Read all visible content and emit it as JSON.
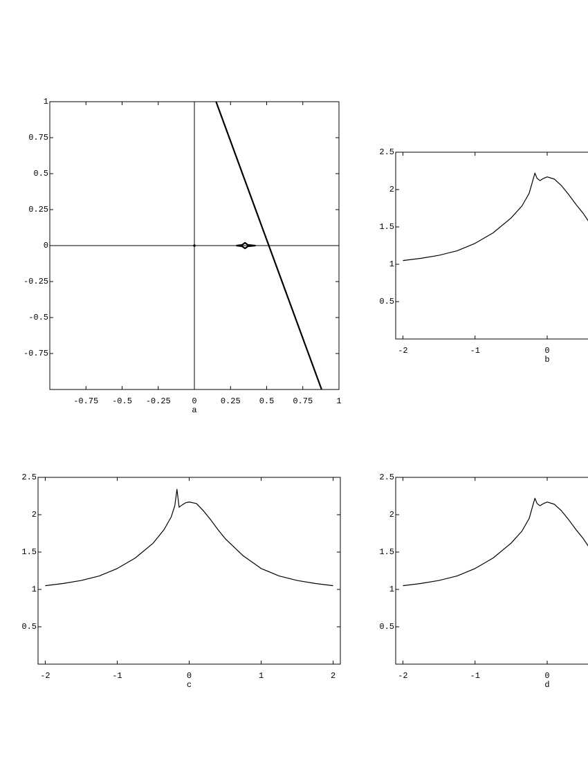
{
  "chart_data": [
    {
      "type": "line",
      "xlabel": "a",
      "xlim": [
        -1,
        1
      ],
      "ylim": [
        -1,
        1
      ],
      "xticks": [
        -0.75,
        -0.5,
        -0.25,
        0,
        0.25,
        0.5,
        0.75,
        1
      ],
      "yticks": [
        -0.75,
        -0.5,
        -0.25,
        0,
        0.25,
        0.5,
        0.75,
        1
      ],
      "series": [
        {
          "color": "#000000",
          "x": [
            0.15,
            0.88
          ],
          "values": [
            1,
            -1
          ]
        },
        {
          "color": "#000000",
          "x": [
            0.29,
            0.33,
            0.35,
            0.37,
            0.42,
            0.37,
            0.35,
            0.33,
            0.29
          ],
          "values": [
            0,
            0.005,
            0.02,
            0.005,
            0,
            -0.005,
            -0.02,
            -0.005,
            0
          ]
        },
        {
          "color": "#000000",
          "x": [
            0
          ],
          "values": [
            0
          ]
        }
      ]
    },
    {
      "type": "line",
      "xlabel": "b",
      "xlim": [
        -2.1,
        2.1
      ],
      "ylim": [
        0,
        2.5
      ],
      "xticks": [
        -2,
        -1,
        0
      ],
      "yticks": [
        0.5,
        1,
        1.5,
        2,
        2.5
      ],
      "series": [
        {
          "color": "#000000",
          "x": [
            -2,
            -1.75,
            -1.5,
            -1.25,
            -1,
            -0.75,
            -0.5,
            -0.35,
            -0.25,
            -0.2,
            -0.17,
            -0.14,
            -0.1,
            -0.05,
            0,
            0.1,
            0.2,
            0.3,
            0.4,
            0.5,
            0.57
          ],
          "values": [
            1.05,
            1.08,
            1.12,
            1.18,
            1.28,
            1.42,
            1.62,
            1.78,
            1.95,
            2.12,
            2.22,
            2.15,
            2.12,
            2.15,
            2.17,
            2.14,
            2.05,
            1.93,
            1.8,
            1.68,
            1.58
          ]
        }
      ]
    },
    {
      "type": "line",
      "xlabel": "c",
      "xlim": [
        -2.1,
        2.1
      ],
      "ylim": [
        0,
        2.5
      ],
      "xticks": [
        -2,
        -1,
        0,
        1,
        2
      ],
      "yticks": [
        0.5,
        1,
        1.5,
        2,
        2.5
      ],
      "series": [
        {
          "color": "#000000",
          "x": [
            -2,
            -1.75,
            -1.5,
            -1.25,
            -1,
            -0.75,
            -0.5,
            -0.35,
            -0.25,
            -0.2,
            -0.17,
            -0.14,
            -0.1,
            -0.05,
            0,
            0.1,
            0.2,
            0.3,
            0.4,
            0.5,
            0.75,
            1,
            1.25,
            1.5,
            1.75,
            2
          ],
          "values": [
            1.05,
            1.08,
            1.12,
            1.18,
            1.28,
            1.42,
            1.62,
            1.8,
            1.97,
            2.12,
            2.34,
            2.1,
            2.13,
            2.16,
            2.17,
            2.15,
            2.05,
            1.93,
            1.8,
            1.68,
            1.45,
            1.28,
            1.18,
            1.12,
            1.08,
            1.05
          ]
        }
      ]
    },
    {
      "type": "line",
      "xlabel": "d",
      "xlim": [
        -2.1,
        2.1
      ],
      "ylim": [
        0,
        2.5
      ],
      "xticks": [
        -2,
        -1,
        0
      ],
      "yticks": [
        0.5,
        1,
        1.5,
        2,
        2.5
      ],
      "series": [
        {
          "color": "#000000",
          "x": [
            -2,
            -1.75,
            -1.5,
            -1.25,
            -1,
            -0.75,
            -0.5,
            -0.35,
            -0.25,
            -0.2,
            -0.17,
            -0.14,
            -0.1,
            -0.05,
            0,
            0.1,
            0.2,
            0.3,
            0.4,
            0.5,
            0.57
          ],
          "values": [
            1.05,
            1.08,
            1.12,
            1.18,
            1.28,
            1.42,
            1.62,
            1.78,
            1.95,
            2.12,
            2.22,
            2.15,
            2.12,
            2.15,
            2.17,
            2.14,
            2.05,
            1.93,
            1.8,
            1.68,
            1.58
          ]
        }
      ]
    }
  ]
}
